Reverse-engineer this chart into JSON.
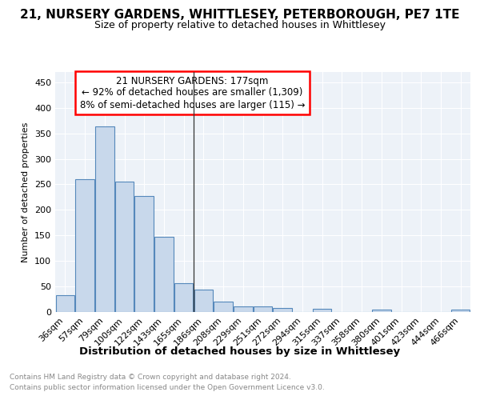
{
  "title1": "21, NURSERY GARDENS, WHITTLESEY, PETERBOROUGH, PE7 1TE",
  "title2": "Size of property relative to detached houses in Whittlesey",
  "xlabel": "Distribution of detached houses by size in Whittlesey",
  "ylabel": "Number of detached properties",
  "categories": [
    "36sqm",
    "57sqm",
    "79sqm",
    "100sqm",
    "122sqm",
    "143sqm",
    "165sqm",
    "186sqm",
    "208sqm",
    "229sqm",
    "251sqm",
    "272sqm",
    "294sqm",
    "315sqm",
    "337sqm",
    "358sqm",
    "380sqm",
    "401sqm",
    "423sqm",
    "444sqm",
    "466sqm"
  ],
  "values": [
    33,
    260,
    363,
    256,
    227,
    148,
    57,
    44,
    20,
    11,
    11,
    8,
    0,
    6,
    0,
    0,
    4,
    0,
    0,
    0,
    4
  ],
  "bar_color": "#c8d8eb",
  "bar_edge_color": "#5588bb",
  "annotation_title": "21 NURSERY GARDENS: 177sqm",
  "annotation_line1": "← 92% of detached houses are smaller (1,309)",
  "annotation_line2": "8% of semi-detached houses are larger (115) →",
  "vline_color": "#333333",
  "ylim": [
    0,
    470
  ],
  "yticks": [
    0,
    50,
    100,
    150,
    200,
    250,
    300,
    350,
    400,
    450
  ],
  "background_color": "#edf2f8",
  "grid_color": "#ffffff",
  "footer_line1": "Contains HM Land Registry data © Crown copyright and database right 2024.",
  "footer_line2": "Contains public sector information licensed under the Open Government Licence v3.0.",
  "title1_fontsize": 11,
  "title2_fontsize": 9,
  "xlabel_fontsize": 9.5,
  "ylabel_fontsize": 8,
  "tick_fontsize": 8,
  "footer_fontsize": 6.5,
  "annotation_fontsize": 8.5
}
